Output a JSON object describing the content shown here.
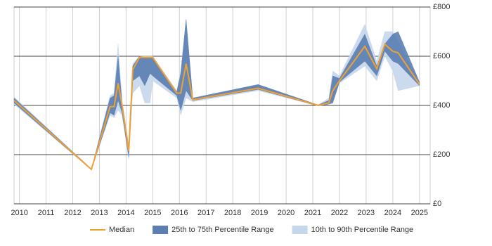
{
  "chart_data": {
    "type": "line-band",
    "x": [
      2009.8,
      2012.7,
      2013.4,
      2013.55,
      2013.7,
      2013.85,
      2014.1,
      2014.25,
      2014.5,
      2014.7,
      2014.9,
      2015.0,
      2015.9,
      2016.05,
      2016.25,
      2016.5,
      2018.95,
      2021.2,
      2021.6,
      2021.75,
      2022.0,
      2022.95,
      2023.4,
      2023.7,
      2024.0,
      2024.2,
      2025.0
    ],
    "series": [
      {
        "name": "10th to 90th Percentile Range",
        "color": "#c6d7eb",
        "lower": [
          405,
          138,
          360,
          350,
          380,
          360,
          180,
          450,
          480,
          410,
          410,
          500,
          430,
          360,
          430,
          415,
          460,
          398,
          405,
          420,
          490,
          560,
          500,
          600,
          540,
          460,
          480
        ],
        "upper": [
          435,
          142,
          440,
          450,
          650,
          420,
          240,
          570,
          600,
          600,
          600,
          600,
          460,
          540,
          750,
          430,
          485,
          402,
          430,
          540,
          520,
          730,
          580,
          700,
          700,
          660,
          490
        ]
      },
      {
        "name": "25th to 75th Percentile Range",
        "color": "#5b7fb3",
        "lower": [
          410,
          138,
          370,
          360,
          420,
          370,
          190,
          500,
          520,
          480,
          530,
          520,
          440,
          380,
          460,
          420,
          465,
          398,
          405,
          410,
          495,
          580,
          520,
          620,
          580,
          570,
          480
        ],
        "upper": [
          430,
          142,
          430,
          440,
          600,
          410,
          230,
          560,
          600,
          595,
          595,
          595,
          455,
          530,
          750,
          430,
          485,
          402,
          420,
          520,
          510,
          690,
          560,
          650,
          690,
          700,
          495
        ]
      },
      {
        "name": "Median",
        "color": "#f0a030",
        "values": [
          420,
          140,
          395,
          395,
          490,
          400,
          215,
          545,
          595,
          595,
          595,
          595,
          450,
          450,
          570,
          423,
          470,
          400,
          410,
          460,
          500,
          640,
          549,
          649,
          620,
          614,
          486
        ]
      }
    ],
    "xlim": [
      2009.8,
      2025.4
    ],
    "xticks": [
      2010,
      2011,
      2012,
      2013,
      2014,
      2015,
      2016,
      2017,
      2018,
      2019,
      2020,
      2021,
      2022,
      2023,
      2024,
      2025
    ],
    "ylim": [
      0,
      800
    ],
    "yticks": [
      {
        "value": 0,
        "label": "£0"
      },
      {
        "value": 200,
        "label": "£200"
      },
      {
        "value": 400,
        "label": "£400"
      },
      {
        "value": 600,
        "label": "£600"
      },
      {
        "value": 800,
        "label": "£800"
      }
    ],
    "grid": true,
    "legend": "bottom"
  }
}
